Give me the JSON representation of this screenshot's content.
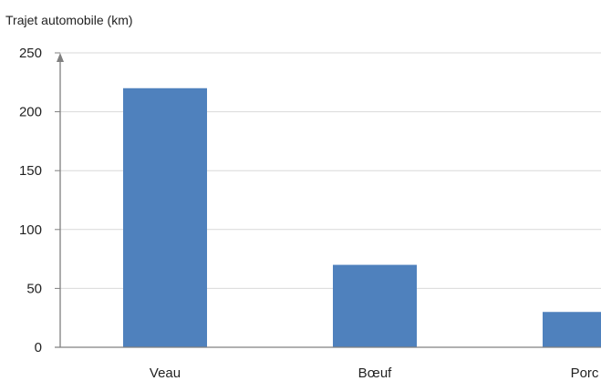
{
  "chart_data": {
    "type": "bar",
    "title": "",
    "xlabel": "",
    "ylabel": "Trajet automobile  (km)",
    "categories": [
      "Veau",
      "Bœuf",
      "Porc"
    ],
    "values": [
      220,
      70,
      30
    ],
    "ylim": [
      0,
      250
    ],
    "yticks": [
      0,
      50,
      100,
      150,
      200,
      250
    ],
    "grid": true,
    "colors": {
      "bar": "#4F81BD",
      "grid": "#D9D9D9",
      "axis": "#808080"
    }
  }
}
